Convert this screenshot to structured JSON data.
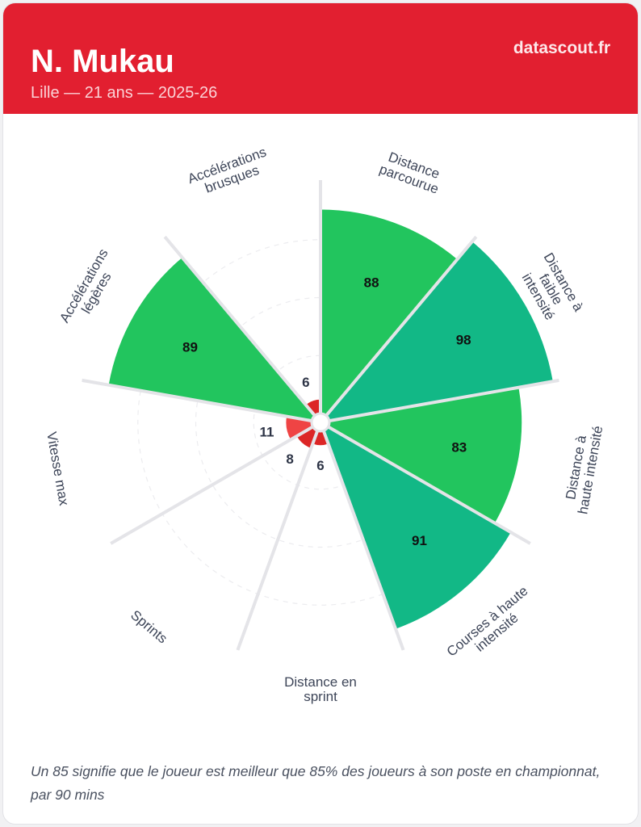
{
  "header": {
    "player": "N. Mukau",
    "subtitle": "Lille — 21 ans — 2025-26",
    "brand": "datascout.fr"
  },
  "chart_data": {
    "type": "pizza",
    "range": [
      0,
      100
    ],
    "categories": [
      {
        "label": [
          "Distance",
          "parcourue"
        ],
        "value": 88
      },
      {
        "label": [
          "Distance à",
          "faible",
          "intensité"
        ],
        "value": 98
      },
      {
        "label": [
          "Distance à",
          "haute intensité"
        ],
        "value": 83
      },
      {
        "label": [
          "Courses à haute",
          "intensité"
        ],
        "value": 91
      },
      {
        "label": [
          "Distance en",
          "sprint"
        ],
        "value": 6
      },
      {
        "label": [
          "Sprints"
        ],
        "value": 8
      },
      {
        "label": [
          "Vitesse max"
        ],
        "value": 11
      },
      {
        "label": [
          "Accélérations",
          "légères"
        ],
        "value": 89
      },
      {
        "label": [
          "Accélérations",
          "brusques"
        ],
        "value": 6
      }
    ],
    "colors": {
      "elite": "#12b886",
      "good": "#22c55e",
      "low_light": "#ef4444",
      "low": "#dc2626"
    }
  },
  "footer": "Un 85 signifie que le joueur est meilleur que 85% des joueurs à son poste en championnat, par 90 mins"
}
